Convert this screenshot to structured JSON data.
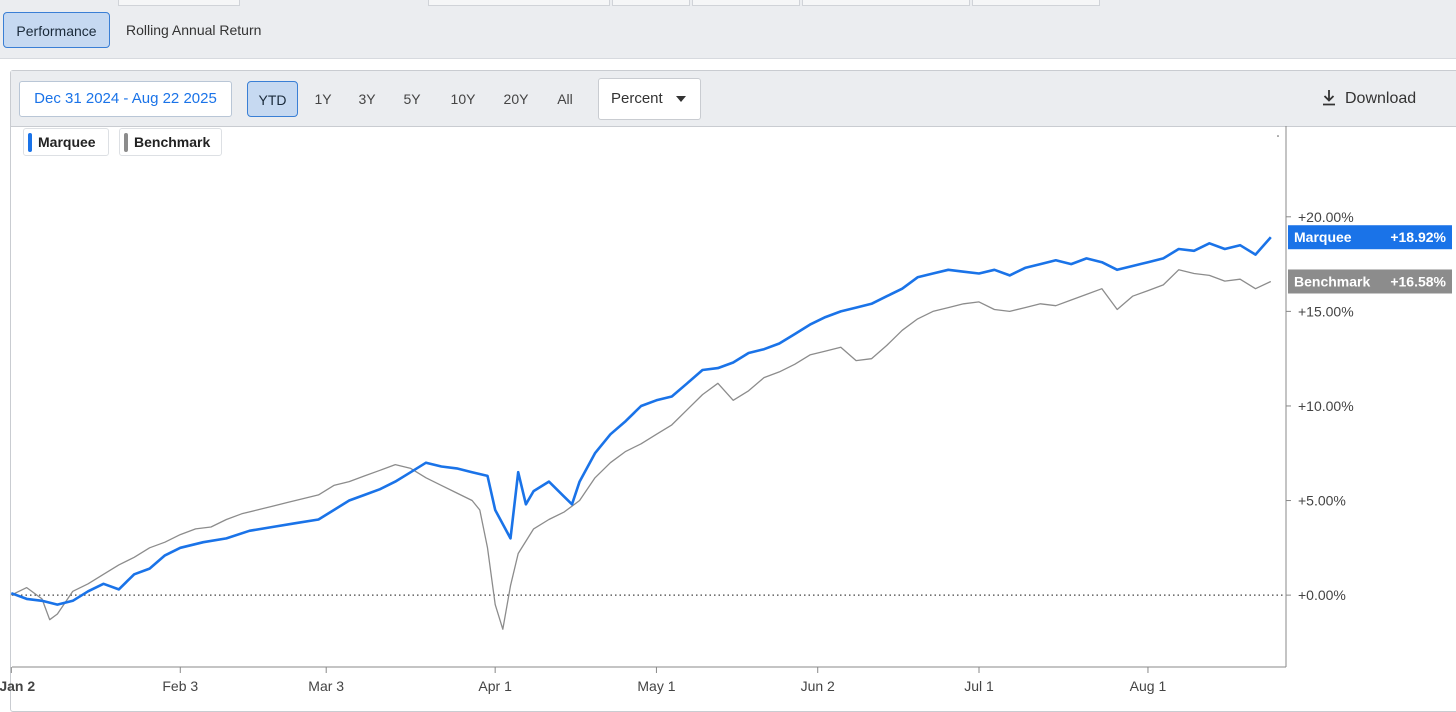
{
  "tabs": {
    "performance_label": "Performance",
    "rolling_label": "Rolling Annual Return"
  },
  "toolbar": {
    "date_range": "Dec 31 2024 - Aug 22 2025",
    "ranges": [
      "YTD",
      "1Y",
      "3Y",
      "5Y",
      "10Y",
      "20Y",
      "All"
    ],
    "active_range": "YTD",
    "mode_select": "Percent",
    "download_label": "Download"
  },
  "colors": {
    "marquee": "#1a73e8",
    "benchmark": "#8c8c8c",
    "active_bg": "#c6d9f1"
  },
  "chart_data": {
    "type": "line",
    "x_unit": "trading day index (Jan 2 2025 = 0)",
    "y_unit": "percent",
    "ylim": [
      -3.8,
      24.8
    ],
    "y_ticks": [
      {
        "v": 20,
        "label": "+20.00%"
      },
      {
        "v": 15,
        "label": "+15.00%"
      },
      {
        "v": 10,
        "label": "+10.00%"
      },
      {
        "v": 5,
        "label": "+5.00%"
      },
      {
        "v": 0,
        "label": "+0.00%"
      }
    ],
    "x_ticks": [
      {
        "d": -1,
        "label": "Jan 2"
      },
      {
        "d": 21,
        "label": "Feb 3"
      },
      {
        "d": 40,
        "label": "Mar 3"
      },
      {
        "d": 62,
        "label": "Apr 1"
      },
      {
        "d": 83,
        "label": "May 1"
      },
      {
        "d": 104,
        "label": "Jun 2"
      },
      {
        "d": 125,
        "label": "Jul 1"
      },
      {
        "d": 147,
        "label": "Aug 1"
      }
    ],
    "zero_line": true,
    "series": [
      {
        "name": "Marquee",
        "last_label": "+18.92%",
        "points": [
          [
            -1,
            0.1
          ],
          [
            1,
            -0.2
          ],
          [
            3,
            -0.3
          ],
          [
            5,
            -0.5
          ],
          [
            7,
            -0.3
          ],
          [
            9,
            0.2
          ],
          [
            11,
            0.6
          ],
          [
            13,
            0.3
          ],
          [
            15,
            1.1
          ],
          [
            17,
            1.4
          ],
          [
            19,
            2.1
          ],
          [
            21,
            2.5
          ],
          [
            24,
            2.8
          ],
          [
            27,
            3.0
          ],
          [
            30,
            3.4
          ],
          [
            33,
            3.6
          ],
          [
            36,
            3.8
          ],
          [
            39,
            4.0
          ],
          [
            41,
            4.5
          ],
          [
            43,
            5.0
          ],
          [
            45,
            5.3
          ],
          [
            47,
            5.6
          ],
          [
            49,
            6.0
          ],
          [
            51,
            6.5
          ],
          [
            53,
            7.0
          ],
          [
            55,
            6.8
          ],
          [
            57,
            6.7
          ],
          [
            59,
            6.5
          ],
          [
            61,
            6.3
          ],
          [
            62,
            4.5
          ],
          [
            64,
            3.0
          ],
          [
            65,
            6.5
          ],
          [
            66,
            4.8
          ],
          [
            67,
            5.5
          ],
          [
            69,
            6.0
          ],
          [
            71,
            5.2
          ],
          [
            72,
            4.8
          ],
          [
            73,
            6.0
          ],
          [
            75,
            7.5
          ],
          [
            77,
            8.5
          ],
          [
            79,
            9.2
          ],
          [
            81,
            10.0
          ],
          [
            83,
            10.3
          ],
          [
            85,
            10.5
          ],
          [
            87,
            11.2
          ],
          [
            89,
            11.9
          ],
          [
            91,
            12.0
          ],
          [
            93,
            12.3
          ],
          [
            95,
            12.8
          ],
          [
            97,
            13.0
          ],
          [
            99,
            13.3
          ],
          [
            101,
            13.8
          ],
          [
            103,
            14.3
          ],
          [
            105,
            14.7
          ],
          [
            107,
            15.0
          ],
          [
            109,
            15.2
          ],
          [
            111,
            15.4
          ],
          [
            113,
            15.8
          ],
          [
            115,
            16.2
          ],
          [
            117,
            16.8
          ],
          [
            119,
            17.0
          ],
          [
            121,
            17.2
          ],
          [
            123,
            17.1
          ],
          [
            125,
            17.0
          ],
          [
            127,
            17.2
          ],
          [
            129,
            16.9
          ],
          [
            131,
            17.3
          ],
          [
            133,
            17.5
          ],
          [
            135,
            17.7
          ],
          [
            137,
            17.5
          ],
          [
            139,
            17.8
          ],
          [
            141,
            17.6
          ],
          [
            143,
            17.2
          ],
          [
            145,
            17.4
          ],
          [
            147,
            17.6
          ],
          [
            149,
            17.8
          ],
          [
            151,
            18.3
          ],
          [
            153,
            18.2
          ],
          [
            155,
            18.6
          ],
          [
            157,
            18.3
          ],
          [
            159,
            18.5
          ],
          [
            161,
            18.0
          ],
          [
            163,
            18.92
          ]
        ]
      },
      {
        "name": "Benchmark",
        "last_label": "+16.58%",
        "points": [
          [
            -1,
            0.0
          ],
          [
            1,
            0.4
          ],
          [
            3,
            -0.2
          ],
          [
            4,
            -1.3
          ],
          [
            5,
            -1.0
          ],
          [
            7,
            0.2
          ],
          [
            9,
            0.6
          ],
          [
            11,
            1.1
          ],
          [
            13,
            1.6
          ],
          [
            15,
            2.0
          ],
          [
            17,
            2.5
          ],
          [
            19,
            2.8
          ],
          [
            21,
            3.2
          ],
          [
            23,
            3.5
          ],
          [
            25,
            3.6
          ],
          [
            27,
            4.0
          ],
          [
            29,
            4.3
          ],
          [
            31,
            4.5
          ],
          [
            33,
            4.7
          ],
          [
            35,
            4.9
          ],
          [
            37,
            5.1
          ],
          [
            39,
            5.3
          ],
          [
            41,
            5.8
          ],
          [
            43,
            6.0
          ],
          [
            45,
            6.3
          ],
          [
            47,
            6.6
          ],
          [
            49,
            6.9
          ],
          [
            51,
            6.7
          ],
          [
            53,
            6.2
          ],
          [
            55,
            5.8
          ],
          [
            57,
            5.4
          ],
          [
            59,
            5.0
          ],
          [
            60,
            4.5
          ],
          [
            61,
            2.5
          ],
          [
            62,
            -0.5
          ],
          [
            63,
            -1.8
          ],
          [
            64,
            0.5
          ],
          [
            65,
            2.2
          ],
          [
            67,
            3.5
          ],
          [
            69,
            4.0
          ],
          [
            71,
            4.4
          ],
          [
            73,
            5.0
          ],
          [
            75,
            6.2
          ],
          [
            77,
            7.0
          ],
          [
            79,
            7.6
          ],
          [
            81,
            8.0
          ],
          [
            83,
            8.5
          ],
          [
            85,
            9.0
          ],
          [
            87,
            9.8
          ],
          [
            89,
            10.6
          ],
          [
            91,
            11.2
          ],
          [
            93,
            10.3
          ],
          [
            95,
            10.8
          ],
          [
            97,
            11.5
          ],
          [
            99,
            11.8
          ],
          [
            101,
            12.2
          ],
          [
            103,
            12.7
          ],
          [
            105,
            12.9
          ],
          [
            107,
            13.1
          ],
          [
            109,
            12.4
          ],
          [
            111,
            12.5
          ],
          [
            113,
            13.2
          ],
          [
            115,
            14.0
          ],
          [
            117,
            14.6
          ],
          [
            119,
            15.0
          ],
          [
            121,
            15.2
          ],
          [
            123,
            15.4
          ],
          [
            125,
            15.5
          ],
          [
            127,
            15.1
          ],
          [
            129,
            15.0
          ],
          [
            131,
            15.2
          ],
          [
            133,
            15.4
          ],
          [
            135,
            15.3
          ],
          [
            137,
            15.6
          ],
          [
            139,
            15.9
          ],
          [
            141,
            16.2
          ],
          [
            143,
            15.1
          ],
          [
            145,
            15.8
          ],
          [
            147,
            16.1
          ],
          [
            149,
            16.4
          ],
          [
            151,
            17.2
          ],
          [
            153,
            17.0
          ],
          [
            155,
            16.9
          ],
          [
            157,
            16.6
          ],
          [
            159,
            16.7
          ],
          [
            161,
            16.2
          ],
          [
            163,
            16.58
          ]
        ]
      }
    ]
  }
}
